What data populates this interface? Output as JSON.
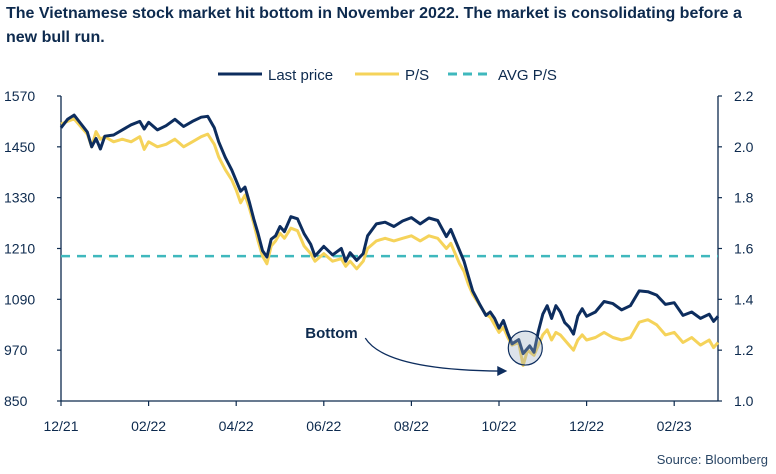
{
  "title": "The Vietnamese stock market hit bottom in November 2022. The market is consolidating before a new bull run.",
  "source": "Source: Bloomberg",
  "colors": {
    "last_price": "#0d2d5e",
    "ps": "#f5d35a",
    "avg_ps": "#3fb8bd",
    "annotation": "#0d2d5e"
  },
  "chart_data": {
    "type": "line",
    "title": "The Vietnamese stock market hit bottom in November 2022. The market is consolidating before a new bull run.",
    "x_unit": "months since Dec 2021",
    "x_ticks": [
      {
        "x": 0,
        "label": "12/21"
      },
      {
        "x": 2,
        "label": "02/22"
      },
      {
        "x": 4,
        "label": "04/22"
      },
      {
        "x": 6,
        "label": "06/22"
      },
      {
        "x": 8,
        "label": "08/22"
      },
      {
        "x": 10,
        "label": "10/22"
      },
      {
        "x": 12,
        "label": "12/22"
      },
      {
        "x": 14,
        "label": "02/23"
      }
    ],
    "xlim": [
      0,
      15.0
    ],
    "y_left": {
      "lim": [
        850,
        1570
      ],
      "ticks": [
        850,
        970,
        1090,
        1210,
        1330,
        1450,
        1570
      ]
    },
    "y_right": {
      "lim": [
        1.0,
        2.2
      ],
      "ticks": [
        "1.0",
        "1.2",
        "1.4",
        "1.6",
        "1.8",
        "2.0",
        "2.2"
      ]
    },
    "legend": {
      "position": "top"
    },
    "grid": false,
    "series": [
      {
        "name": "Last price",
        "axis": "left",
        "points": [
          [
            0.0,
            1495
          ],
          [
            0.15,
            1515
          ],
          [
            0.3,
            1525
          ],
          [
            0.45,
            1505
          ],
          [
            0.6,
            1485
          ],
          [
            0.7,
            1450
          ],
          [
            0.8,
            1470
          ],
          [
            0.9,
            1445
          ],
          [
            1.0,
            1475
          ],
          [
            1.2,
            1478
          ],
          [
            1.4,
            1490
          ],
          [
            1.6,
            1502
          ],
          [
            1.8,
            1510
          ],
          [
            1.9,
            1492
          ],
          [
            2.0,
            1508
          ],
          [
            2.2,
            1490
          ],
          [
            2.4,
            1500
          ],
          [
            2.6,
            1515
          ],
          [
            2.8,
            1498
          ],
          [
            3.0,
            1510
          ],
          [
            3.2,
            1520
          ],
          [
            3.35,
            1522
          ],
          [
            3.5,
            1495
          ],
          [
            3.6,
            1462
          ],
          [
            3.75,
            1425
          ],
          [
            3.9,
            1395
          ],
          [
            4.0,
            1370
          ],
          [
            4.1,
            1345
          ],
          [
            4.2,
            1355
          ],
          [
            4.3,
            1320
          ],
          [
            4.4,
            1280
          ],
          [
            4.5,
            1245
          ],
          [
            4.6,
            1205
          ],
          [
            4.7,
            1190
          ],
          [
            4.8,
            1232
          ],
          [
            4.9,
            1240
          ],
          [
            5.0,
            1262
          ],
          [
            5.1,
            1250
          ],
          [
            5.25,
            1285
          ],
          [
            5.4,
            1280
          ],
          [
            5.55,
            1245
          ],
          [
            5.7,
            1220
          ],
          [
            5.8,
            1192
          ],
          [
            6.0,
            1215
          ],
          [
            6.2,
            1195
          ],
          [
            6.4,
            1210
          ],
          [
            6.5,
            1180
          ],
          [
            6.6,
            1200
          ],
          [
            6.75,
            1182
          ],
          [
            6.9,
            1198
          ],
          [
            7.0,
            1240
          ],
          [
            7.2,
            1268
          ],
          [
            7.4,
            1272
          ],
          [
            7.6,
            1262
          ],
          [
            7.8,
            1275
          ],
          [
            8.0,
            1283
          ],
          [
            8.2,
            1268
          ],
          [
            8.4,
            1282
          ],
          [
            8.6,
            1276
          ],
          [
            8.8,
            1238
          ],
          [
            8.9,
            1255
          ],
          [
            9.0,
            1230
          ],
          [
            9.1,
            1205
          ],
          [
            9.2,
            1180
          ],
          [
            9.3,
            1145
          ],
          [
            9.4,
            1110
          ],
          [
            9.55,
            1080
          ],
          [
            9.7,
            1052
          ],
          [
            9.8,
            1060
          ],
          [
            9.9,
            1045
          ],
          [
            10.0,
            1022
          ],
          [
            10.1,
            1040
          ],
          [
            10.2,
            1010
          ],
          [
            10.3,
            985
          ],
          [
            10.45,
            995
          ],
          [
            10.55,
            962
          ],
          [
            10.7,
            980
          ],
          [
            10.8,
            965
          ],
          [
            10.9,
            1015
          ],
          [
            11.0,
            1055
          ],
          [
            11.1,
            1075
          ],
          [
            11.2,
            1045
          ],
          [
            11.3,
            1075
          ],
          [
            11.4,
            1060
          ],
          [
            11.5,
            1035
          ],
          [
            11.6,
            1025
          ],
          [
            11.7,
            1008
          ],
          [
            11.8,
            1050
          ],
          [
            11.9,
            1068
          ],
          [
            12.0,
            1050
          ],
          [
            12.2,
            1060
          ],
          [
            12.4,
            1085
          ],
          [
            12.6,
            1080
          ],
          [
            12.8,
            1065
          ],
          [
            13.0,
            1075
          ],
          [
            13.2,
            1110
          ],
          [
            13.4,
            1108
          ],
          [
            13.6,
            1100
          ],
          [
            13.8,
            1078
          ],
          [
            14.0,
            1082
          ],
          [
            14.2,
            1052
          ],
          [
            14.4,
            1060
          ],
          [
            14.6,
            1045
          ],
          [
            14.8,
            1055
          ],
          [
            14.9,
            1038
          ],
          [
            15.0,
            1050
          ]
        ]
      },
      {
        "name": "P/S",
        "axis": "right",
        "points": [
          [
            0.0,
            2.09
          ],
          [
            0.15,
            2.1
          ],
          [
            0.3,
            2.11
          ],
          [
            0.45,
            2.08
          ],
          [
            0.6,
            2.05
          ],
          [
            0.7,
            2.0
          ],
          [
            0.8,
            2.06
          ],
          [
            0.9,
            2.03
          ],
          [
            1.0,
            2.04
          ],
          [
            1.2,
            2.02
          ],
          [
            1.4,
            2.03
          ],
          [
            1.6,
            2.02
          ],
          [
            1.8,
            2.04
          ],
          [
            1.9,
            1.99
          ],
          [
            2.0,
            2.02
          ],
          [
            2.2,
            2.0
          ],
          [
            2.4,
            2.01
          ],
          [
            2.6,
            2.03
          ],
          [
            2.8,
            2.0
          ],
          [
            3.0,
            2.02
          ],
          [
            3.2,
            2.04
          ],
          [
            3.35,
            2.05
          ],
          [
            3.5,
            2.01
          ],
          [
            3.6,
            1.96
          ],
          [
            3.75,
            1.91
          ],
          [
            3.9,
            1.87
          ],
          [
            4.0,
            1.83
          ],
          [
            4.1,
            1.78
          ],
          [
            4.2,
            1.81
          ],
          [
            4.3,
            1.76
          ],
          [
            4.4,
            1.7
          ],
          [
            4.5,
            1.63
          ],
          [
            4.6,
            1.57
          ],
          [
            4.7,
            1.54
          ],
          [
            4.8,
            1.61
          ],
          [
            4.9,
            1.63
          ],
          [
            5.0,
            1.66
          ],
          [
            5.1,
            1.64
          ],
          [
            5.25,
            1.68
          ],
          [
            5.4,
            1.67
          ],
          [
            5.55,
            1.61
          ],
          [
            5.7,
            1.58
          ],
          [
            5.8,
            1.55
          ],
          [
            6.0,
            1.58
          ],
          [
            6.2,
            1.55
          ],
          [
            6.4,
            1.56
          ],
          [
            6.5,
            1.53
          ],
          [
            6.6,
            1.55
          ],
          [
            6.75,
            1.52
          ],
          [
            6.9,
            1.55
          ],
          [
            7.0,
            1.6
          ],
          [
            7.2,
            1.63
          ],
          [
            7.4,
            1.64
          ],
          [
            7.6,
            1.63
          ],
          [
            7.8,
            1.64
          ],
          [
            8.0,
            1.65
          ],
          [
            8.2,
            1.63
          ],
          [
            8.4,
            1.65
          ],
          [
            8.6,
            1.64
          ],
          [
            8.8,
            1.6
          ],
          [
            8.9,
            1.62
          ],
          [
            9.0,
            1.58
          ],
          [
            9.1,
            1.54
          ],
          [
            9.2,
            1.51
          ],
          [
            9.3,
            1.46
          ],
          [
            9.4,
            1.42
          ],
          [
            9.55,
            1.38
          ],
          [
            9.7,
            1.34
          ],
          [
            9.8,
            1.33
          ],
          [
            9.9,
            1.3
          ],
          [
            10.0,
            1.27
          ],
          [
            10.1,
            1.29
          ],
          [
            10.2,
            1.25
          ],
          [
            10.3,
            1.22
          ],
          [
            10.45,
            1.23
          ],
          [
            10.55,
            1.14
          ],
          [
            10.65,
            1.2
          ],
          [
            10.8,
            1.18
          ],
          [
            10.9,
            1.22
          ],
          [
            11.0,
            1.26
          ],
          [
            11.1,
            1.28
          ],
          [
            11.2,
            1.24
          ],
          [
            11.3,
            1.27
          ],
          [
            11.4,
            1.26
          ],
          [
            11.5,
            1.24
          ],
          [
            11.6,
            1.22
          ],
          [
            11.7,
            1.2
          ],
          [
            11.8,
            1.24
          ],
          [
            11.9,
            1.26
          ],
          [
            12.0,
            1.24
          ],
          [
            12.2,
            1.25
          ],
          [
            12.4,
            1.27
          ],
          [
            12.6,
            1.25
          ],
          [
            12.8,
            1.24
          ],
          [
            13.0,
            1.25
          ],
          [
            13.2,
            1.31
          ],
          [
            13.4,
            1.32
          ],
          [
            13.6,
            1.3
          ],
          [
            13.8,
            1.26
          ],
          [
            14.0,
            1.27
          ],
          [
            14.2,
            1.23
          ],
          [
            14.4,
            1.25
          ],
          [
            14.6,
            1.22
          ],
          [
            14.8,
            1.24
          ],
          [
            14.9,
            1.21
          ],
          [
            15.0,
            1.23
          ]
        ]
      },
      {
        "name": "AVG P/S",
        "axis": "right",
        "constant": 1.57,
        "style": "dashed"
      }
    ],
    "annotations": [
      {
        "text": "Bottom",
        "x": 10.6,
        "y": 975
      }
    ]
  }
}
